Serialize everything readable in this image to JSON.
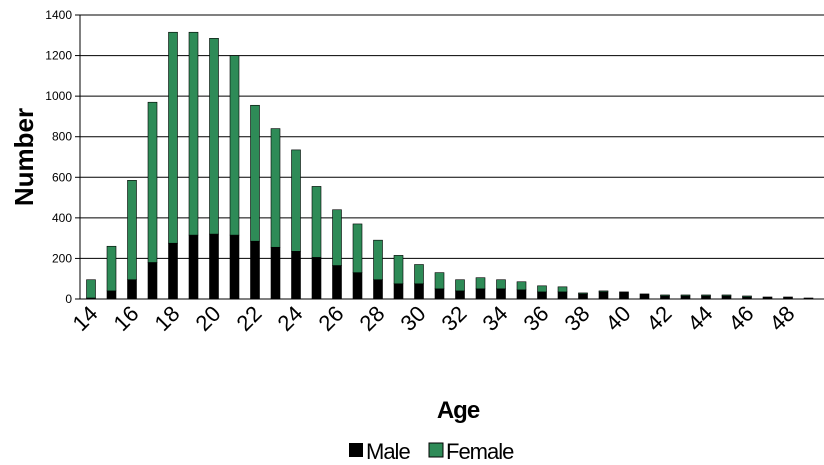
{
  "chart_data": {
    "type": "bar",
    "stacked": true,
    "xlabel": "Age",
    "ylabel": "Number",
    "ylim": [
      0,
      1400
    ],
    "yticks": [
      0,
      200,
      400,
      600,
      800,
      1000,
      1200,
      1400
    ],
    "categories": [
      14,
      15,
      16,
      17,
      18,
      19,
      20,
      21,
      22,
      23,
      24,
      25,
      26,
      27,
      28,
      29,
      30,
      31,
      32,
      33,
      34,
      35,
      36,
      37,
      38,
      39,
      40,
      41,
      42,
      43,
      44,
      45,
      46,
      47,
      48,
      49
    ],
    "xtick_labels": [
      "14",
      "16",
      "18",
      "20",
      "22",
      "24",
      "26",
      "28",
      "30",
      "32",
      "34",
      "36",
      "38",
      "40",
      "42",
      "44",
      "46",
      "48"
    ],
    "grid": true,
    "legend_position": "bottom",
    "series": [
      {
        "name": "Male",
        "color": "#000000",
        "values": [
          5,
          40,
          95,
          180,
          275,
          315,
          320,
          315,
          285,
          255,
          235,
          205,
          165,
          130,
          95,
          75,
          75,
          50,
          40,
          50,
          50,
          45,
          35,
          35,
          25,
          35,
          35,
          25,
          15,
          15,
          15,
          15,
          10,
          10,
          10,
          5
        ]
      },
      {
        "name": "Female",
        "color": "#2E8B57",
        "values": [
          90,
          220,
          490,
          790,
          1040,
          1000,
          965,
          885,
          670,
          585,
          500,
          350,
          275,
          240,
          195,
          140,
          95,
          80,
          55,
          55,
          45,
          40,
          30,
          25,
          5,
          5,
          0,
          0,
          5,
          5,
          5,
          5,
          5,
          0,
          0,
          0
        ]
      }
    ]
  }
}
